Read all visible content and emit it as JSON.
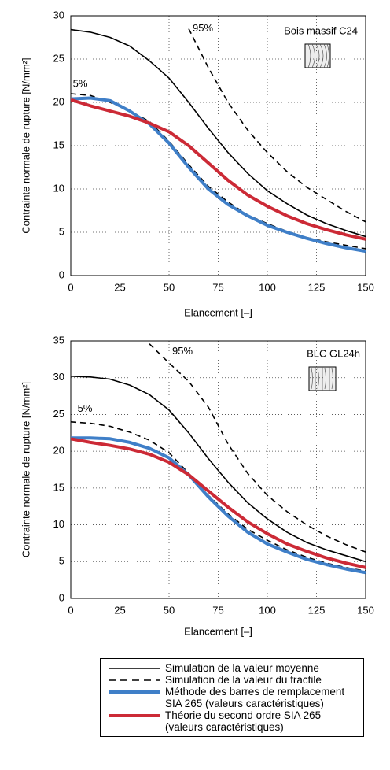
{
  "chart_data": [
    {
      "type": "line",
      "annotation": "Bois massif C24",
      "xlabel": "Elancement [–]",
      "ylabel": "Contrainte normale de rupture [N/mm²]",
      "x": [
        0,
        10,
        20,
        30,
        40,
        50,
        60,
        70,
        80,
        90,
        100,
        110,
        120,
        130,
        140,
        150
      ],
      "xlim": [
        0,
        150
      ],
      "xticks": [
        0,
        25,
        50,
        75,
        100,
        125,
        150
      ],
      "ylim": [
        0,
        30
      ],
      "yticks": [
        0,
        5,
        10,
        15,
        20,
        25,
        30
      ],
      "grid": true,
      "series": [
        {
          "name": "Simulation de la valeur moyenne",
          "color": "#000000",
          "dash": false,
          "values": [
            28.4,
            28.1,
            27.5,
            26.5,
            24.8,
            22.8,
            20,
            17,
            14.2,
            11.8,
            9.8,
            8.3,
            7,
            6,
            5.2,
            4.5
          ]
        },
        {
          "name": "Simulation de la valeur du fractile",
          "label": "5%",
          "color": "#000000",
          "dash": true,
          "values": [
            21,
            20.8,
            20,
            19,
            17.8,
            15.5,
            12.8,
            10.3,
            8.5,
            7,
            6,
            5.1,
            4.4,
            3.9,
            3.5,
            3.1
          ]
        },
        {
          "label": "95%",
          "color": "#000000",
          "dash": true,
          "values": [
            null,
            null,
            null,
            null,
            null,
            null,
            28.5,
            24,
            20,
            16.8,
            14.2,
            12,
            10.2,
            8.8,
            7.4,
            6.2
          ]
        },
        {
          "name": "Méthode des barres de remplacement SIA 265 (valeurs caractéristiques)",
          "color": "#3f7fc8",
          "dash": false,
          "values": [
            20.4,
            20.5,
            20.2,
            19,
            17.5,
            15.3,
            12.5,
            10,
            8.2,
            6.9,
            5.8,
            5,
            4.3,
            3.7,
            3.2,
            2.8
          ]
        },
        {
          "name": "Théorie du second ordre SIA 265 (valeurs caractéristiques)",
          "color": "#cc2a36",
          "dash": false,
          "values": [
            20.3,
            19.6,
            19,
            18.4,
            17.6,
            16.6,
            15,
            13,
            11,
            9.3,
            8,
            6.9,
            6,
            5.3,
            4.7,
            4.2
          ]
        }
      ]
    },
    {
      "type": "line",
      "annotation": "BLC GL24h",
      "xlabel": "Elancement [–]",
      "ylabel": "Contrainte normale de rupture [N/mm²]",
      "x": [
        0,
        10,
        20,
        30,
        40,
        50,
        60,
        70,
        80,
        90,
        100,
        110,
        120,
        130,
        140,
        150
      ],
      "xlim": [
        0,
        150
      ],
      "xticks": [
        0,
        25,
        50,
        75,
        100,
        125,
        150
      ],
      "ylim": [
        0,
        35
      ],
      "yticks": [
        0,
        5,
        10,
        15,
        20,
        25,
        30,
        35
      ],
      "grid": true,
      "series": [
        {
          "color": "#000000",
          "dash": false,
          "values": [
            30.2,
            30.1,
            29.8,
            29,
            27.7,
            25.6,
            22.5,
            19,
            15.8,
            13,
            10.8,
            9,
            7.6,
            6.6,
            5.8,
            5
          ]
        },
        {
          "label": "5%",
          "color": "#000000",
          "dash": true,
          "values": [
            24,
            23.8,
            23.4,
            22.6,
            21.5,
            19.8,
            17,
            14,
            11.5,
            9.4,
            7.9,
            6.6,
            5.6,
            4.8,
            4.2,
            3.7
          ]
        },
        {
          "label": "95%",
          "color": "#000000",
          "dash": true,
          "values": [
            null,
            null,
            null,
            null,
            34.6,
            32,
            29.5,
            26,
            21,
            17,
            14,
            11.8,
            10,
            8.5,
            7.3,
            6.3
          ]
        },
        {
          "color": "#3f7fc8",
          "dash": false,
          "values": [
            21.8,
            21.8,
            21.7,
            21.2,
            20.4,
            19.1,
            16.8,
            13.8,
            11.2,
            9,
            7.4,
            6.3,
            5.3,
            4.6,
            4,
            3.5
          ]
        },
        {
          "color": "#cc2a36",
          "dash": false,
          "values": [
            21.7,
            21.2,
            20.8,
            20.3,
            19.6,
            18.5,
            16.8,
            14.6,
            12.4,
            10.4,
            8.8,
            7.4,
            6.4,
            5.5,
            4.8,
            4.2
          ]
        }
      ]
    }
  ]
}
